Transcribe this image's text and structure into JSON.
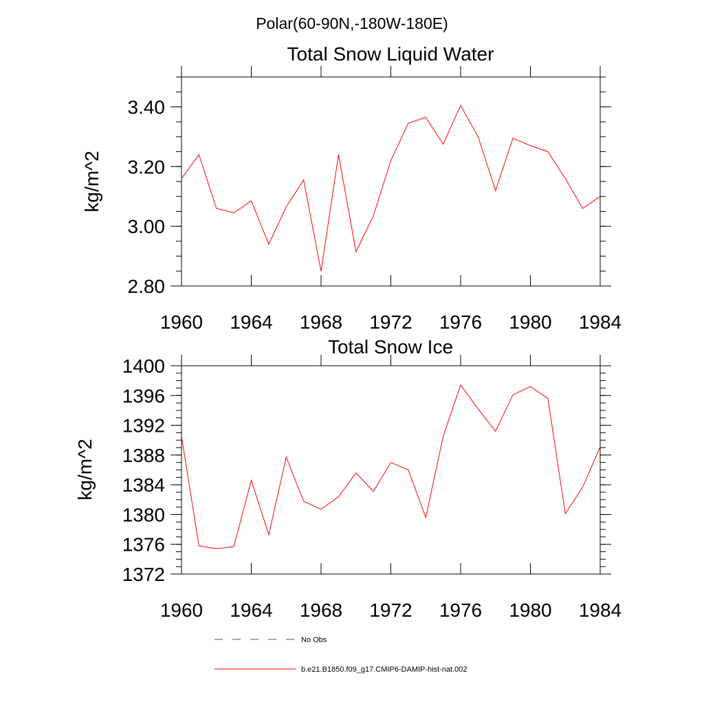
{
  "figure": {
    "suptitle": "Polar(60-90N,-180W-180E)"
  },
  "chart_data": [
    {
      "type": "line",
      "title": "Total Snow Liquid Water",
      "xlabel": "",
      "ylabel": "kg/m^2",
      "xlim": [
        1960,
        1984
      ],
      "ylim": [
        2.8,
        3.5
      ],
      "xticks": [
        1960,
        1964,
        1968,
        1972,
        1976,
        1980,
        1984
      ],
      "xtick_labels": [
        "1960",
        "1964",
        "1968",
        "1972",
        "1976",
        "1980",
        "1984"
      ],
      "yticks": [
        2.8,
        3.0,
        3.2,
        3.4
      ],
      "ytick_labels": [
        "2.80",
        "3.00",
        "3.20",
        "3.40"
      ],
      "y_minor_step": 0.05,
      "grid": false,
      "x": [
        1960,
        1961,
        1962,
        1963,
        1964,
        1965,
        1966,
        1967,
        1968,
        1969,
        1970,
        1971,
        1972,
        1973,
        1974,
        1975,
        1976,
        1977,
        1978,
        1979,
        1980,
        1981,
        1982,
        1983,
        1984
      ],
      "series": [
        {
          "name": "b.e21.B1850.f09_g17.CMIP6-DAMIP-hist-nat.002",
          "color": "#ff0000",
          "values": [
            3.16,
            3.24,
            3.06,
            3.045,
            3.085,
            2.94,
            3.065,
            3.155,
            2.85,
            3.24,
            2.915,
            3.035,
            3.22,
            3.345,
            3.365,
            3.275,
            3.405,
            3.3,
            3.12,
            3.295,
            3.27,
            3.25,
            3.16,
            3.06,
            3.1
          ]
        }
      ]
    },
    {
      "type": "line",
      "title": "Total Snow Ice",
      "xlabel": "",
      "ylabel": "kg/m^2",
      "xlim": [
        1960,
        1984
      ],
      "ylim": [
        1372,
        1400
      ],
      "xticks": [
        1960,
        1964,
        1968,
        1972,
        1976,
        1980,
        1984
      ],
      "xtick_labels": [
        "1960",
        "1964",
        "1968",
        "1972",
        "1976",
        "1980",
        "1984"
      ],
      "yticks": [
        1372,
        1376,
        1380,
        1384,
        1388,
        1392,
        1396,
        1400
      ],
      "ytick_labels": [
        "1372",
        "1376",
        "1380",
        "1384",
        "1388",
        "1392",
        "1396",
        "1400"
      ],
      "y_minor_step": 1,
      "grid": false,
      "x": [
        1960,
        1961,
        1962,
        1963,
        1964,
        1965,
        1966,
        1967,
        1968,
        1969,
        1970,
        1971,
        1972,
        1973,
        1974,
        1975,
        1976,
        1977,
        1978,
        1979,
        1980,
        1981,
        1982,
        1983,
        1984
      ],
      "series": [
        {
          "name": "b.e21.B1850.f09_g17.CMIP6-DAMIP-hist-nat.002",
          "color": "#ff0000",
          "values": [
            1390.5,
            1375.8,
            1375.4,
            1375.7,
            1384.6,
            1377.3,
            1387.7,
            1381.8,
            1380.7,
            1382.4,
            1385.6,
            1383.1,
            1387.0,
            1386.0,
            1379.6,
            1390.5,
            1397.4,
            1394.2,
            1391.2,
            1396.1,
            1397.2,
            1395.6,
            1380.1,
            1383.7,
            1389.1
          ]
        }
      ]
    }
  ],
  "legend": {
    "placement": "bottom",
    "entries": [
      {
        "label": "No Obs",
        "color": "#4a4a8a",
        "style": "dashed"
      },
      {
        "label": "b.e21.B1850.f09_g17.CMIP6-DAMIP-hist-nat.002",
        "color": "#ff0000",
        "style": "solid"
      }
    ]
  }
}
